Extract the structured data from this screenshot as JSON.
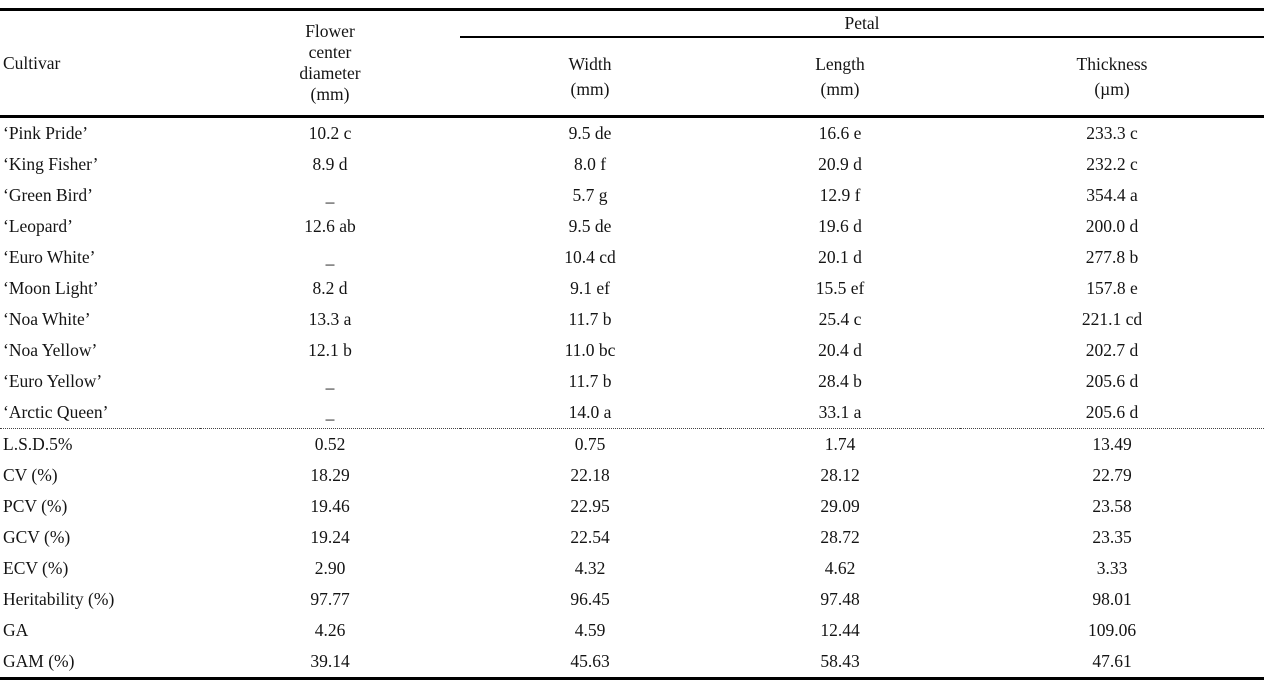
{
  "page": {
    "background_color": "#ffffff",
    "text_color": "#141414",
    "rule_color": "#000000"
  },
  "table": {
    "headers": {
      "cultivar": "Cultivar",
      "flower_center_diameter": "Flower center diameter (mm)",
      "petal_group": "Petal",
      "petal_columns": [
        {
          "label": "Width",
          "unit": "(mm)"
        },
        {
          "label": "Length",
          "unit": "(mm)"
        },
        {
          "label": "Thickness",
          "unit": "(µm)"
        }
      ]
    },
    "cultivar_rows": [
      {
        "cultivar": "‘Pink Pride’",
        "flower_center_diameter": "10.2 c",
        "petal_width": "9.5 de",
        "petal_length": "16.6 e",
        "petal_thickness": "233.3 c"
      },
      {
        "cultivar": "‘King Fisher’",
        "flower_center_diameter": "8.9 d",
        "petal_width": "8.0 f",
        "petal_length": "20.9 d",
        "petal_thickness": "232.2 c"
      },
      {
        "cultivar": "‘Green Bird’",
        "flower_center_diameter": "_",
        "petal_width": "5.7 g",
        "petal_length": "12.9 f",
        "petal_thickness": "354.4 a"
      },
      {
        "cultivar": "‘Leopard’",
        "flower_center_diameter": "12.6 ab",
        "petal_width": "9.5 de",
        "petal_length": "19.6 d",
        "petal_thickness": "200.0 d"
      },
      {
        "cultivar": "‘Euro White’",
        "flower_center_diameter": "_",
        "petal_width": "10.4 cd",
        "petal_length": "20.1 d",
        "petal_thickness": "277.8 b"
      },
      {
        "cultivar": "‘Moon Light’",
        "flower_center_diameter": "8.2 d",
        "petal_width": "9.1 ef",
        "petal_length": "15.5 ef",
        "petal_thickness": "157.8 e"
      },
      {
        "cultivar": "‘Noa White’",
        "flower_center_diameter": "13.3 a",
        "petal_width": "11.7 b",
        "petal_length": "25.4 c",
        "petal_thickness": "221.1 cd"
      },
      {
        "cultivar": "‘Noa Yellow’",
        "flower_center_diameter": "12.1 b",
        "petal_width": "11.0 bc",
        "petal_length": "20.4 d",
        "petal_thickness": "202.7 d"
      },
      {
        "cultivar": "‘Euro Yellow’",
        "flower_center_diameter": "_",
        "petal_width": "11.7 b",
        "petal_length": "28.4 b",
        "petal_thickness": "205.6 d"
      },
      {
        "cultivar": "‘Arctic Queen’",
        "flower_center_diameter": "_",
        "petal_width": "14.0 a",
        "petal_length": "33.1 a",
        "petal_thickness": "205.6 d"
      }
    ],
    "stat_rows": [
      {
        "label": "L.S.D.5%",
        "values": [
          "0.52",
          "0.75",
          "1.74",
          "13.49"
        ]
      },
      {
        "label": "CV (%)",
        "values": [
          "18.29",
          "22.18",
          "28.12",
          "22.79"
        ]
      },
      {
        "label": "PCV (%)",
        "values": [
          "19.46",
          "22.95",
          "29.09",
          "23.58"
        ]
      },
      {
        "label": "GCV (%)",
        "values": [
          "19.24",
          "22.54",
          "28.72",
          "23.35"
        ]
      },
      {
        "label": "ECV (%)",
        "values": [
          "2.90",
          "4.32",
          "4.62",
          "3.33"
        ]
      },
      {
        "label": "Heritability (%)",
        "values": [
          "97.77",
          "96.45",
          "97.48",
          "98.01"
        ]
      },
      {
        "label": "GA",
        "values": [
          "4.26",
          "4.59",
          "12.44",
          "109.06"
        ]
      },
      {
        "label": "GAM (%)",
        "values": [
          "39.14",
          "45.63",
          "58.43",
          "47.61"
        ]
      }
    ]
  }
}
